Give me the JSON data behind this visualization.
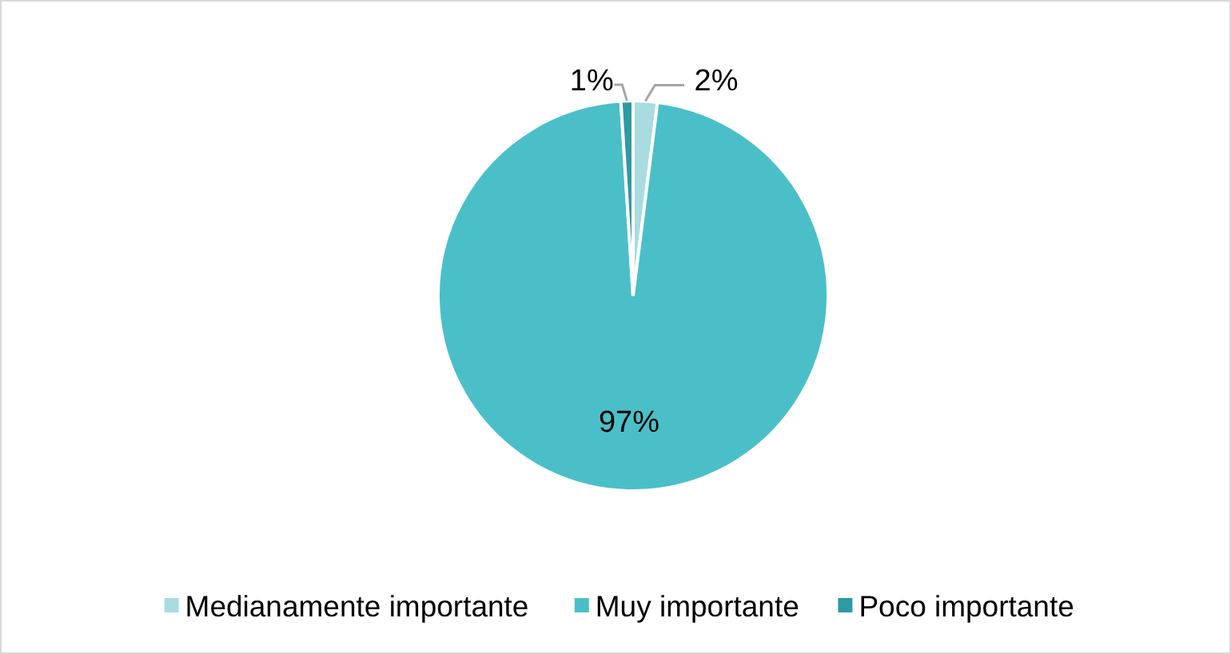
{
  "chart_data": {
    "type": "pie",
    "categories": [
      "Medianamente importante",
      "Muy importante",
      "Poco importante"
    ],
    "values": [
      2,
      97,
      1
    ],
    "colors": [
      "#a8dce0",
      "#4bbfc8",
      "#2e9aa3"
    ],
    "value_labels": [
      "2%",
      "97%",
      "1%"
    ],
    "legend": "bottom"
  }
}
